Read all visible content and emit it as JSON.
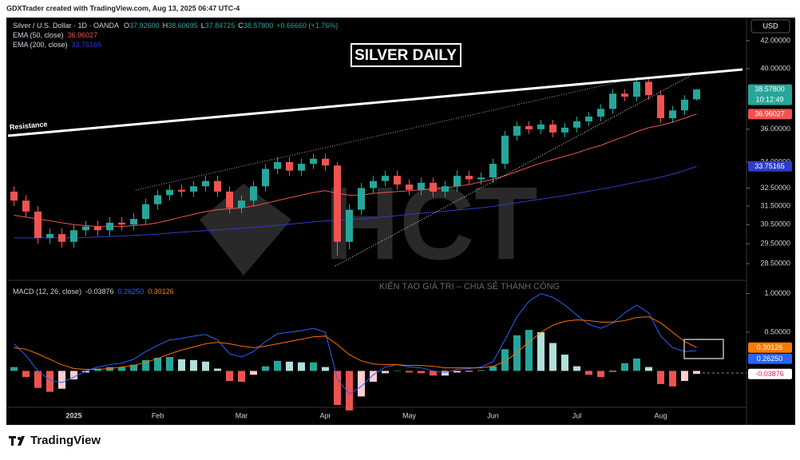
{
  "header": {
    "credit": "GDXTrader created with TradingView.com, Aug 13, 2025 06:47 UTC-4"
  },
  "footer": {
    "brand": "TradingView"
  },
  "chart_data": [
    {
      "type": "candlestick",
      "symbol": "Silver / U.S. Dollar · 1D · OANDA",
      "ohlc_legend": [
        {
          "key": "O",
          "value": "37.92600"
        },
        {
          "key": "H",
          "value": "38.60695"
        },
        {
          "key": "L",
          "value": "37.84725"
        },
        {
          "key": "C",
          "value": "38.57800"
        }
      ],
      "change": "+0.66660 (+1.76%)",
      "title": "SILVER DAILY",
      "annotation": "Resistance",
      "currency": "USD",
      "watermark": "HCT",
      "watermark_tagline": "KIẾN TẠO GIÁ TRỊ – CHIA SẺ THÀNH CÔNG",
      "categories": [
        null,
        null,
        null,
        null,
        null,
        "2025",
        null,
        null,
        null,
        null,
        null,
        null,
        "Feb",
        null,
        null,
        null,
        null,
        null,
        null,
        "Mar",
        null,
        null,
        null,
        null,
        null,
        null,
        "Apr",
        null,
        null,
        null,
        null,
        null,
        null,
        "May",
        null,
        null,
        null,
        null,
        null,
        null,
        "Jun",
        null,
        null,
        null,
        null,
        null,
        null,
        "Jul",
        null,
        null,
        null,
        null,
        null,
        null,
        "Aug",
        null,
        null,
        null
      ],
      "open": [
        32.3,
        31.8,
        31.2,
        29.8,
        30.0,
        29.6,
        30.2,
        30.4,
        30.2,
        30.6,
        30.5,
        30.8,
        31.6,
        32.1,
        32.4,
        32.3,
        32.6,
        32.9,
        32.3,
        31.4,
        31.8,
        32.6,
        33.6,
        34.0,
        33.5,
        33.9,
        34.2,
        33.8,
        29.6,
        31.3,
        32.5,
        32.9,
        33.2,
        32.7,
        32.4,
        32.8,
        32.3,
        32.6,
        33.2,
        33.0,
        33.1,
        33.9,
        35.6,
        36.2,
        36.0,
        36.3,
        35.8,
        36.1,
        36.5,
        36.8,
        37.3,
        38.3,
        38.1,
        39.1,
        38.2,
        36.7,
        37.2,
        37.926
      ],
      "high": [
        32.6,
        32.1,
        31.5,
        30.3,
        30.3,
        30.5,
        30.7,
        30.7,
        30.9,
        30.9,
        31.1,
        31.9,
        32.4,
        32.7,
        32.7,
        32.9,
        33.2,
        33.2,
        32.6,
        32.1,
        32.9,
        33.9,
        34.3,
        34.3,
        34.2,
        34.5,
        34.5,
        34.0,
        31.6,
        32.8,
        33.2,
        33.5,
        33.5,
        33.0,
        33.1,
        33.1,
        32.9,
        33.5,
        33.5,
        33.4,
        34.2,
        35.9,
        36.5,
        36.5,
        36.6,
        36.6,
        36.4,
        36.8,
        37.1,
        37.6,
        38.6,
        38.6,
        39.4,
        39.4,
        38.5,
        37.5,
        38.2,
        38.60695
      ],
      "low": [
        31.5,
        30.9,
        29.5,
        29.5,
        29.3,
        29.3,
        29.9,
        29.9,
        29.9,
        30.2,
        30.2,
        30.5,
        31.3,
        31.8,
        32.0,
        32.0,
        32.3,
        32.0,
        31.1,
        31.1,
        31.5,
        32.3,
        33.3,
        33.2,
        33.2,
        33.6,
        33.5,
        28.9,
        29.2,
        31.0,
        32.2,
        32.6,
        32.4,
        32.1,
        32.1,
        32.0,
        32.0,
        32.3,
        32.7,
        32.7,
        32.8,
        33.6,
        35.3,
        35.7,
        35.7,
        35.5,
        35.5,
        35.8,
        36.2,
        36.5,
        37.0,
        37.8,
        37.8,
        37.9,
        36.4,
        36.4,
        36.9,
        37.84725
      ],
      "close": [
        31.8,
        31.2,
        29.8,
        30.0,
        29.6,
        30.2,
        30.4,
        30.2,
        30.6,
        30.5,
        30.8,
        31.6,
        32.1,
        32.4,
        32.3,
        32.6,
        32.9,
        32.3,
        31.4,
        31.8,
        32.6,
        33.6,
        34.0,
        33.5,
        33.9,
        34.2,
        33.8,
        29.6,
        31.3,
        32.5,
        32.9,
        33.2,
        32.7,
        32.4,
        32.8,
        32.3,
        32.6,
        33.2,
        33.0,
        33.1,
        33.9,
        35.6,
        36.2,
        36.0,
        36.3,
        35.8,
        36.1,
        36.5,
        36.8,
        37.3,
        38.3,
        38.1,
        39.1,
        38.2,
        36.7,
        37.2,
        37.9,
        38.578
      ],
      "up_color": "#26a69a",
      "down_color": "#ef5350",
      "series": [
        {
          "name": "EMA (50, close)",
          "color": "#ef5350",
          "values": [
            31.0,
            30.9,
            30.8,
            30.7,
            30.6,
            30.5,
            30.45,
            30.4,
            30.4,
            30.4,
            30.45,
            30.5,
            30.6,
            30.75,
            30.9,
            31.05,
            31.2,
            31.3,
            31.35,
            31.4,
            31.5,
            31.65,
            31.8,
            31.95,
            32.1,
            32.25,
            32.35,
            32.2,
            32.1,
            32.1,
            32.2,
            32.25,
            32.3,
            32.35,
            32.4,
            32.45,
            32.5,
            32.6,
            32.7,
            32.85,
            33.0,
            33.2,
            33.45,
            33.7,
            33.95,
            34.15,
            34.35,
            34.55,
            34.8,
            35.0,
            35.3,
            35.55,
            35.85,
            36.1,
            36.25,
            36.45,
            36.7,
            36.96027
          ]
        },
        {
          "name": "EMA (200, close)",
          "color": "#2f3cc8",
          "values": [
            29.8,
            29.8,
            29.8,
            29.8,
            29.8,
            29.8,
            29.82,
            29.85,
            29.88,
            29.9,
            29.93,
            29.96,
            30.0,
            30.05,
            30.1,
            30.14,
            30.18,
            30.22,
            30.26,
            30.3,
            30.35,
            30.4,
            30.46,
            30.52,
            30.58,
            30.64,
            30.7,
            30.72,
            30.75,
            30.8,
            30.86,
            30.92,
            30.98,
            31.04,
            31.1,
            31.16,
            31.22,
            31.28,
            31.34,
            31.4,
            31.48,
            31.58,
            31.68,
            31.78,
            31.88,
            31.98,
            32.08,
            32.2,
            32.32,
            32.44,
            32.56,
            32.7,
            32.84,
            32.98,
            33.12,
            33.3,
            33.5,
            33.75165
          ]
        }
      ],
      "log_scale": true,
      "ylim": [
        27.72,
        43.72
      ],
      "yticks": [
        {
          "value": 42,
          "label": "42.00000"
        },
        {
          "value": 40,
          "label": "40.00000"
        },
        {
          "value": 36,
          "label": "36.00000"
        },
        {
          "value": 34,
          "label": "34.00000"
        },
        {
          "value": 32.5,
          "label": "32.50000"
        },
        {
          "value": 31.5,
          "label": "31.50000"
        },
        {
          "value": 30.5,
          "label": "30.50000"
        },
        {
          "value": 29.5,
          "label": "29.50000"
        },
        {
          "value": 28.5,
          "label": "28.50000"
        }
      ],
      "price_labels": [
        {
          "value": 38.578,
          "label": "38.57800",
          "color": "#26a69a",
          "countdown": "10:12:49"
        },
        {
          "value": 36.96027,
          "label": "36.96027",
          "color": "#ef5350"
        },
        {
          "value": 33.75165,
          "label": "33.75165",
          "color": "#2f3cc8"
        }
      ]
    },
    {
      "type": "macd",
      "title": "MACD (12, 26, close)",
      "histogram": [
        0.05,
        -0.08,
        -0.22,
        -0.27,
        -0.23,
        -0.11,
        -0.02,
        0.03,
        0.05,
        0.05,
        0.08,
        0.14,
        0.17,
        0.18,
        0.15,
        0.14,
        0.12,
        0.03,
        -0.13,
        -0.14,
        -0.05,
        0.06,
        0.13,
        0.12,
        0.11,
        0.11,
        0.05,
        -0.44,
        -0.51,
        -0.33,
        -0.14,
        -0.03,
        0.0,
        -0.02,
        -0.03,
        -0.06,
        -0.06,
        -0.02,
        -0.01,
        0.01,
        0.06,
        0.28,
        0.46,
        0.53,
        0.5,
        0.36,
        0.21,
        0.06,
        -0.05,
        -0.08,
        -0.01,
        0.1,
        0.16,
        0.05,
        -0.17,
        -0.2,
        -0.13,
        -0.03876
      ],
      "histogram_colors": {
        "up_strong": "#26a69a",
        "up_weak": "#b2dfdb",
        "down_strong": "#ef5350",
        "down_weak": "#ffcdd2"
      },
      "series": [
        {
          "color": "#2962ff",
          "values": [
            0.35,
            0.2,
            0.0,
            -0.12,
            -0.15,
            -0.08,
            0.0,
            0.05,
            0.08,
            0.1,
            0.15,
            0.25,
            0.33,
            0.4,
            0.42,
            0.45,
            0.47,
            0.4,
            0.22,
            0.18,
            0.25,
            0.38,
            0.48,
            0.5,
            0.52,
            0.55,
            0.5,
            -0.1,
            -0.3,
            -0.2,
            -0.05,
            0.05,
            0.08,
            0.05,
            0.04,
            0.0,
            -0.02,
            0.02,
            0.03,
            0.05,
            0.12,
            0.4,
            0.7,
            0.9,
            1.0,
            0.95,
            0.85,
            0.72,
            0.6,
            0.55,
            0.62,
            0.75,
            0.85,
            0.75,
            0.45,
            0.3,
            0.25,
            0.2625
          ]
        },
        {
          "color": "#ff6d00",
          "values": [
            0.3,
            0.28,
            0.22,
            0.15,
            0.08,
            0.03,
            0.02,
            0.02,
            0.03,
            0.05,
            0.07,
            0.11,
            0.16,
            0.22,
            0.27,
            0.31,
            0.35,
            0.37,
            0.35,
            0.32,
            0.3,
            0.32,
            0.35,
            0.38,
            0.41,
            0.44,
            0.45,
            0.34,
            0.21,
            0.13,
            0.09,
            0.08,
            0.08,
            0.07,
            0.07,
            0.06,
            0.04,
            0.04,
            0.04,
            0.04,
            0.06,
            0.12,
            0.24,
            0.37,
            0.5,
            0.59,
            0.64,
            0.66,
            0.65,
            0.63,
            0.63,
            0.65,
            0.69,
            0.7,
            0.62,
            0.5,
            0.38,
            0.30126
          ]
        }
      ],
      "ylim": [
        -0.47,
        1.16
      ],
      "yticks": [
        {
          "value": 1,
          "label": "1.00000"
        },
        {
          "value": 0.5,
          "label": "0.50000"
        }
      ],
      "price_labels": [
        {
          "value": 0.30126,
          "label": "0.30126",
          "color": "#f57c00"
        },
        {
          "value": 0.2625,
          "label": "0.26250",
          "color": "#2962ff"
        },
        {
          "value": -0.03876,
          "label": "-0.03876",
          "color": "#ffffff",
          "text_color": "#e91e63"
        }
      ]
    }
  ]
}
